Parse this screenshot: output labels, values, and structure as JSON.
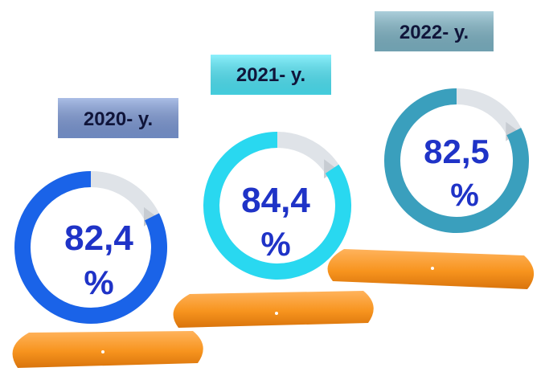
{
  "chart_data": {
    "type": "donut",
    "unit": "%",
    "items": [
      {
        "label": "2020- y.",
        "value": 82.4,
        "value_text": "82,4",
        "unit_text": "%",
        "color": "#1a63e8",
        "label_bg": "#7d9ad8"
      },
      {
        "label": "2021- y.",
        "value": 84.4,
        "value_text": "84,4",
        "unit_text": "%",
        "color": "#29d8f0",
        "label_bg": "#4ee8fa"
      },
      {
        "label": "2022- y.",
        "value": 82.5,
        "value_text": "82,5",
        "unit_text": "%",
        "color": "#3a9fbd",
        "label_bg": "#7fb6c8"
      }
    ]
  }
}
